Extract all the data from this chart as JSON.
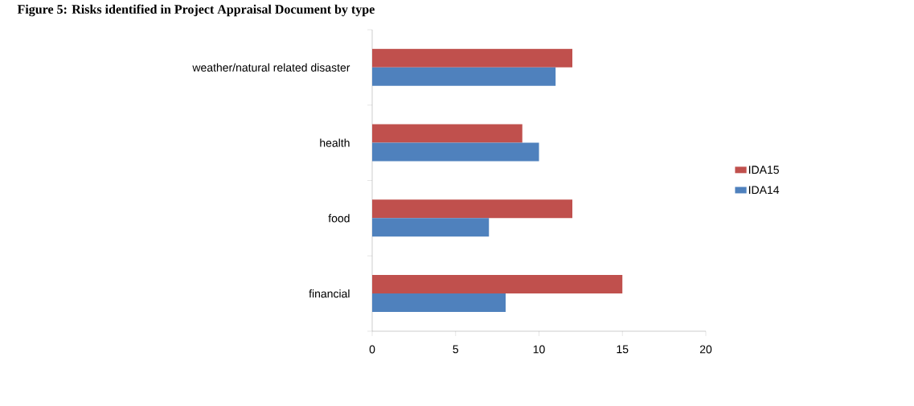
{
  "chart_data": {
    "type": "bar",
    "orientation": "horizontal",
    "title": "Figure 5: Risks identified in Project Appraisal Document by type",
    "categories": [
      "weather/natural related disaster",
      "health",
      "food",
      "financial"
    ],
    "series": [
      {
        "name": "IDA15",
        "color": "#c0504d",
        "values": [
          12,
          9,
          12,
          15
        ]
      },
      {
        "name": "IDA14",
        "color": "#4f81bd",
        "values": [
          11,
          10,
          7,
          8
        ]
      }
    ],
    "xlim": [
      0,
      20
    ],
    "xticks": [
      0,
      5,
      10,
      15,
      20
    ],
    "legend": "right"
  }
}
